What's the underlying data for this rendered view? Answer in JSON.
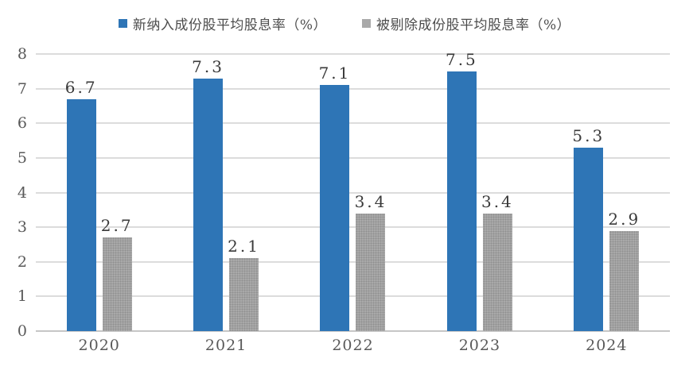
{
  "chart_data": {
    "type": "bar",
    "title": "",
    "categories": [
      "2020",
      "2021",
      "2022",
      "2023",
      "2024"
    ],
    "series": [
      {
        "name": "新纳入成份股平均股息率（%）",
        "values": [
          6.7,
          7.3,
          7.1,
          7.5,
          5.3
        ],
        "labels": [
          "6.7",
          "7.3",
          "7.1",
          "7.5",
          "5.3"
        ],
        "color": "#2e75b6"
      },
      {
        "name": "被剔除成份股平均股息率（%）",
        "values": [
          2.7,
          2.1,
          3.4,
          3.4,
          2.9
        ],
        "labels": [
          "2.7",
          "2.1",
          "3.4",
          "3.4",
          "2.9"
        ],
        "color": "#a9a9a9"
      }
    ],
    "xlabel": "",
    "ylabel": "",
    "ylim": [
      0,
      8
    ],
    "yticks": [
      0,
      1,
      2,
      3,
      4,
      5,
      6,
      7,
      8
    ],
    "grid": true,
    "legend_position": "top"
  },
  "legend": {
    "items": [
      {
        "label": "新纳入成份股平均股息率（%）",
        "color": "#2e75b6"
      },
      {
        "label": "被剔除成份股平均股息率（%）",
        "color": "#a9a9a9"
      }
    ]
  },
  "colors": {
    "bar_blue": "#2e75b6",
    "bar_gray": "#a9a9a9",
    "gridline": "#dcdcdc",
    "axis_line": "#c6c6c6",
    "tick_text": "#595959",
    "label_text": "#3a3a3a",
    "background": "#ffffff"
  }
}
